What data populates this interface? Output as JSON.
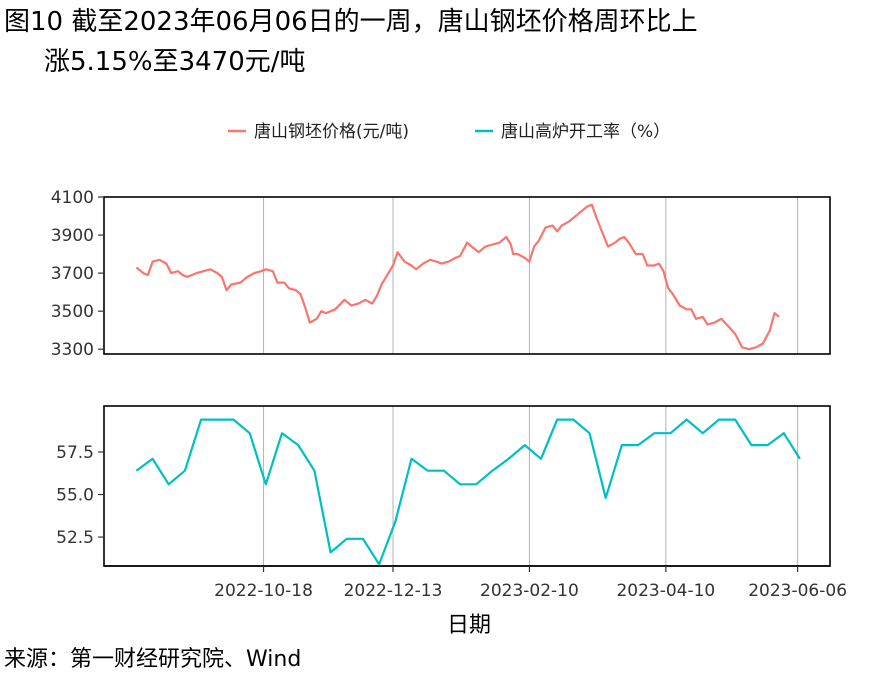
{
  "figure": {
    "title_line1": "图10  截至2023年06月06日的一周，唐山钢坯价格周环比上",
    "title_line2": "涨5.15%至3470元/吨",
    "source": "来源：第一财经研究院、Wind"
  },
  "chart_data": {
    "type": "line",
    "xlabel": "日期",
    "legend_position": "top",
    "x_ticks": [
      "2022-10-18",
      "2022-12-13",
      "2023-02-10",
      "2023-04-10",
      "2023-06-06"
    ],
    "x_range": [
      "2022-08-10",
      "2023-06-20"
    ],
    "panels": [
      {
        "name": "唐山钢坯价格(元/吨)",
        "color": "#F8766D",
        "ylim": [
          3275,
          4100
        ],
        "y_ticks": [
          3300,
          3500,
          3700,
          3900,
          4100
        ],
        "grid": "vertical",
        "points": [
          [
            "2022-08-24",
            3730
          ],
          [
            "2022-08-27",
            3700
          ],
          [
            "2022-08-29",
            3690
          ],
          [
            "2022-08-31",
            3760
          ],
          [
            "2022-09-03",
            3770
          ],
          [
            "2022-09-06",
            3750
          ],
          [
            "2022-09-08",
            3700
          ],
          [
            "2022-09-11",
            3710
          ],
          [
            "2022-09-13",
            3690
          ],
          [
            "2022-09-15",
            3680
          ],
          [
            "2022-09-19",
            3700
          ],
          [
            "2022-09-22",
            3710
          ],
          [
            "2022-09-25",
            3720
          ],
          [
            "2022-09-28",
            3700
          ],
          [
            "2022-09-30",
            3680
          ],
          [
            "2022-10-02",
            3610
          ],
          [
            "2022-10-04",
            3640
          ],
          [
            "2022-10-08",
            3650
          ],
          [
            "2022-10-11",
            3680
          ],
          [
            "2022-10-14",
            3700
          ],
          [
            "2022-10-17",
            3710
          ],
          [
            "2022-10-19",
            3720
          ],
          [
            "2022-10-22",
            3710
          ],
          [
            "2022-10-24",
            3650
          ],
          [
            "2022-10-27",
            3650
          ],
          [
            "2022-10-29",
            3620
          ],
          [
            "2022-11-01",
            3610
          ],
          [
            "2022-11-03",
            3590
          ],
          [
            "2022-11-05",
            3520
          ],
          [
            "2022-11-07",
            3440
          ],
          [
            "2022-11-10",
            3460
          ],
          [
            "2022-11-12",
            3500
          ],
          [
            "2022-11-14",
            3490
          ],
          [
            "2022-11-18",
            3510
          ],
          [
            "2022-11-22",
            3560
          ],
          [
            "2022-11-25",
            3530
          ],
          [
            "2022-11-28",
            3540
          ],
          [
            "2022-12-01",
            3560
          ],
          [
            "2022-12-04",
            3540
          ],
          [
            "2022-12-06",
            3580
          ],
          [
            "2022-12-08",
            3640
          ],
          [
            "2022-12-11",
            3700
          ],
          [
            "2022-12-13",
            3740
          ],
          [
            "2022-12-15",
            3810
          ],
          [
            "2022-12-18",
            3760
          ],
          [
            "2022-12-21",
            3740
          ],
          [
            "2022-12-23",
            3720
          ],
          [
            "2022-12-26",
            3750
          ],
          [
            "2022-12-29",
            3770
          ],
          [
            "2023-01-01",
            3760
          ],
          [
            "2023-01-03",
            3750
          ],
          [
            "2023-01-06",
            3760
          ],
          [
            "2023-01-09",
            3780
          ],
          [
            "2023-01-11",
            3790
          ],
          [
            "2023-01-14",
            3860
          ],
          [
            "2023-01-17",
            3830
          ],
          [
            "2023-01-19",
            3810
          ],
          [
            "2023-01-22",
            3840
          ],
          [
            "2023-01-25",
            3850
          ],
          [
            "2023-01-28",
            3860
          ],
          [
            "2023-01-31",
            3890
          ],
          [
            "2023-02-02",
            3850
          ],
          [
            "2023-02-03",
            3800
          ],
          [
            "2023-02-05",
            3800
          ],
          [
            "2023-02-08",
            3780
          ],
          [
            "2023-02-10",
            3760
          ],
          [
            "2023-02-12",
            3840
          ],
          [
            "2023-02-14",
            3870
          ],
          [
            "2023-02-17",
            3940
          ],
          [
            "2023-02-20",
            3950
          ],
          [
            "2023-02-22",
            3920
          ],
          [
            "2023-02-24",
            3950
          ],
          [
            "2023-02-27",
            3970
          ],
          [
            "2023-03-01",
            3990
          ],
          [
            "2023-03-04",
            4020
          ],
          [
            "2023-03-07",
            4050
          ],
          [
            "2023-03-09",
            4060
          ],
          [
            "2023-03-11",
            3990
          ],
          [
            "2023-03-14",
            3900
          ],
          [
            "2023-03-16",
            3840
          ],
          [
            "2023-03-19",
            3860
          ],
          [
            "2023-03-21",
            3880
          ],
          [
            "2023-03-23",
            3890
          ],
          [
            "2023-03-25",
            3860
          ],
          [
            "2023-03-28",
            3800
          ],
          [
            "2023-03-31",
            3800
          ],
          [
            "2023-04-02",
            3740
          ],
          [
            "2023-04-05",
            3740
          ],
          [
            "2023-04-07",
            3750
          ],
          [
            "2023-04-09",
            3710
          ],
          [
            "2023-04-11",
            3620
          ],
          [
            "2023-04-13",
            3590
          ],
          [
            "2023-04-16",
            3530
          ],
          [
            "2023-04-19",
            3510
          ],
          [
            "2023-04-21",
            3510
          ],
          [
            "2023-04-23",
            3460
          ],
          [
            "2023-04-26",
            3470
          ],
          [
            "2023-04-28",
            3430
          ],
          [
            "2023-05-01",
            3440
          ],
          [
            "2023-05-04",
            3460
          ],
          [
            "2023-05-07",
            3420
          ],
          [
            "2023-05-10",
            3380
          ],
          [
            "2023-05-13",
            3310
          ],
          [
            "2023-05-16",
            3300
          ],
          [
            "2023-05-19",
            3310
          ],
          [
            "2023-05-22",
            3330
          ],
          [
            "2023-05-25",
            3400
          ],
          [
            "2023-05-27",
            3490
          ],
          [
            "2023-05-29",
            3470
          ]
        ]
      },
      {
        "name": "唐山高炉开工率（%）",
        "color": "#00BFC4",
        "ylim": [
          50.8,
          60.2
        ],
        "y_ticks": [
          52.5,
          55.0,
          57.5
        ],
        "grid": "vertical",
        "points": [
          [
            "2022-08-24",
            56.4
          ],
          [
            "2022-08-31",
            57.1
          ],
          [
            "2022-09-07",
            55.6
          ],
          [
            "2022-09-14",
            56.4
          ],
          [
            "2022-09-21",
            59.4
          ],
          [
            "2022-09-28",
            59.4
          ],
          [
            "2022-10-05",
            59.4
          ],
          [
            "2022-10-12",
            58.6
          ],
          [
            "2022-10-19",
            55.6
          ],
          [
            "2022-10-26",
            58.6
          ],
          [
            "2022-11-02",
            57.9
          ],
          [
            "2022-11-09",
            56.4
          ],
          [
            "2022-11-16",
            51.6
          ],
          [
            "2022-11-23",
            52.4
          ],
          [
            "2022-11-30",
            52.4
          ],
          [
            "2022-12-07",
            50.9
          ],
          [
            "2022-12-14",
            53.4
          ],
          [
            "2022-12-21",
            57.1
          ],
          [
            "2022-12-28",
            56.4
          ],
          [
            "2023-01-04",
            56.4
          ],
          [
            "2023-01-11",
            55.6
          ],
          [
            "2023-01-18",
            55.6
          ],
          [
            "2023-01-25",
            56.4
          ],
          [
            "2023-02-01",
            57.1
          ],
          [
            "2023-02-08",
            57.9
          ],
          [
            "2023-02-15",
            57.1
          ],
          [
            "2023-02-22",
            59.4
          ],
          [
            "2023-03-01",
            59.4
          ],
          [
            "2023-03-08",
            58.6
          ],
          [
            "2023-03-15",
            54.8
          ],
          [
            "2023-03-22",
            57.9
          ],
          [
            "2023-03-29",
            57.9
          ],
          [
            "2023-04-05",
            58.6
          ],
          [
            "2023-04-12",
            58.6
          ],
          [
            "2023-04-19",
            59.4
          ],
          [
            "2023-04-26",
            58.6
          ],
          [
            "2023-05-03",
            59.4
          ],
          [
            "2023-05-10",
            59.4
          ],
          [
            "2023-05-17",
            57.9
          ],
          [
            "2023-05-24",
            57.9
          ],
          [
            "2023-05-31",
            58.6
          ],
          [
            "2023-06-07",
            57.1
          ]
        ]
      }
    ]
  }
}
